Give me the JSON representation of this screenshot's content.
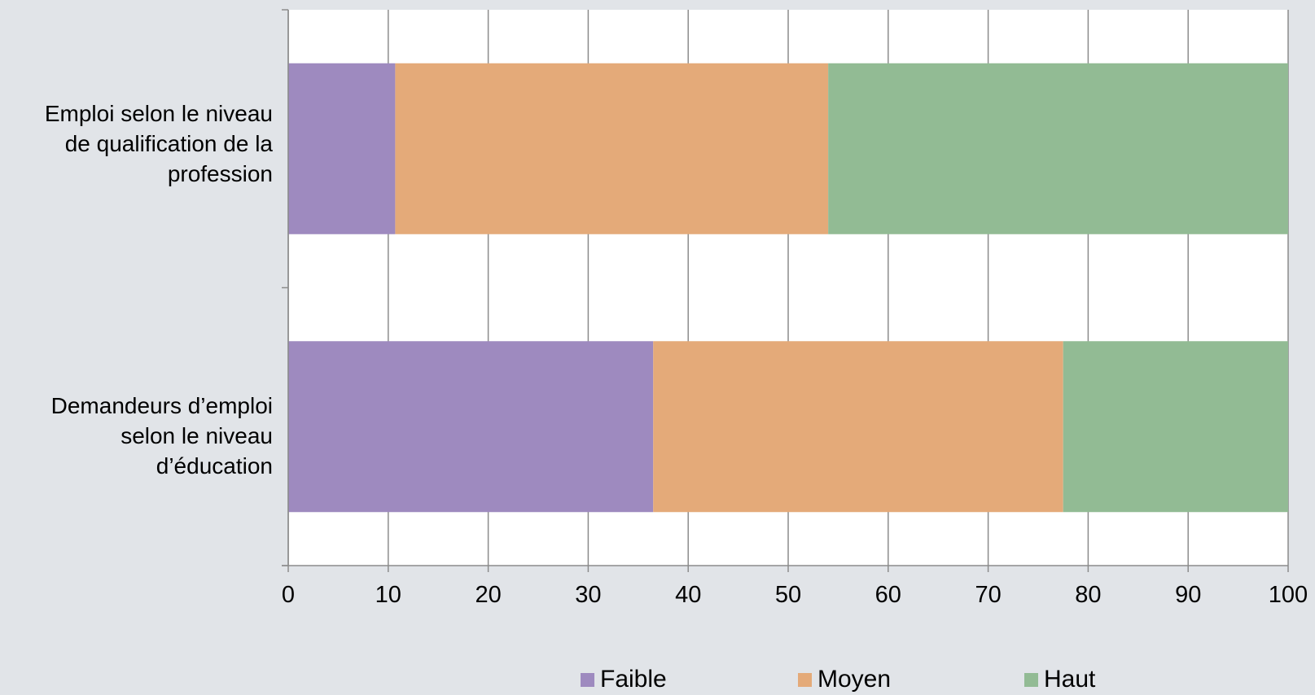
{
  "chart_data": {
    "type": "bar",
    "orientation": "horizontal",
    "stacked": true,
    "categories": [
      "Emploi selon le niveau de qualification de la profession",
      "Demandeurs d’emploi selon le niveau d’éducation"
    ],
    "category_lines": [
      [
        "Emploi selon le niveau",
        "de qualification de la",
        "profession"
      ],
      [
        "Demandeurs d’emploi",
        "selon le niveau",
        "d’éducation"
      ]
    ],
    "series": [
      {
        "name": "Faible",
        "color": "#9e8abf",
        "values": [
          10.7,
          36.5
        ]
      },
      {
        "name": "Moyen",
        "color": "#e4aa79",
        "values": [
          43.3,
          41.0
        ]
      },
      {
        "name": "Haut",
        "color": "#92bb94",
        "values": [
          46.0,
          22.5
        ]
      }
    ],
    "xlim": [
      0,
      100
    ],
    "xticks": [
      0,
      10,
      20,
      30,
      40,
      50,
      60,
      70,
      80,
      90,
      100
    ],
    "grid": true,
    "legend_position": "bottom"
  },
  "colors": {
    "background": "#e1e4e8",
    "plot_area": "#ffffff",
    "grid": "#8c8c8c"
  }
}
